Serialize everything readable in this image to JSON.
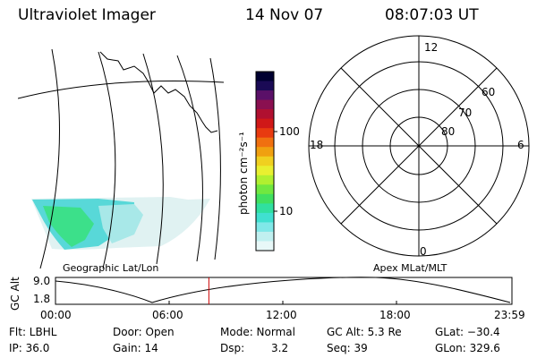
{
  "header": {
    "instrument": "Ultraviolet Imager",
    "date": "14 Nov 07",
    "time": "08:07:03 UT"
  },
  "colorbar": {
    "unit_label": "photon cm⁻²s⁻¹",
    "ticks": [
      "100",
      "10"
    ],
    "colors": [
      "#000030",
      "#1a0a55",
      "#5a1068",
      "#8a1050",
      "#b01030",
      "#d01818",
      "#e83a10",
      "#f07010",
      "#f0a010",
      "#f0d020",
      "#e8f030",
      "#b0f030",
      "#70e840",
      "#40e060",
      "#30e0a0",
      "#40e0d0",
      "#80e8e8",
      "#c0f0f0",
      "#e8f8f8"
    ]
  },
  "geo_panel": {
    "label": "Geographic Lat/Lon"
  },
  "polar_panel": {
    "label": "Apex MLat/MLT",
    "mlt_labels": {
      "top": "12",
      "left": "18",
      "right": "6",
      "bottom": "0"
    },
    "lat_labels": [
      "60",
      "70",
      "80"
    ]
  },
  "altitude_plot": {
    "ylabel": "GC Alt",
    "y_ticks": [
      "9.0",
      "1.8"
    ],
    "x_ticks": [
      "00:00",
      "06:00",
      "12:00",
      "18:00",
      "23:59"
    ],
    "current_time_fraction": 0.336,
    "marker_color": "#cc0000"
  },
  "info": {
    "flt": "Flt: LBHL",
    "ip": "IP: 36.0",
    "door": "Door: Open",
    "gain": "Gain: 14",
    "mode": "Mode: Normal",
    "dsp_label": "Dsp:",
    "dsp_value": "3.2",
    "gcalt": "GC Alt: 5.3 Re",
    "seq": "Seq: 39",
    "glat": "GLat: −30.4",
    "glon": "GLon: 329.6"
  }
}
